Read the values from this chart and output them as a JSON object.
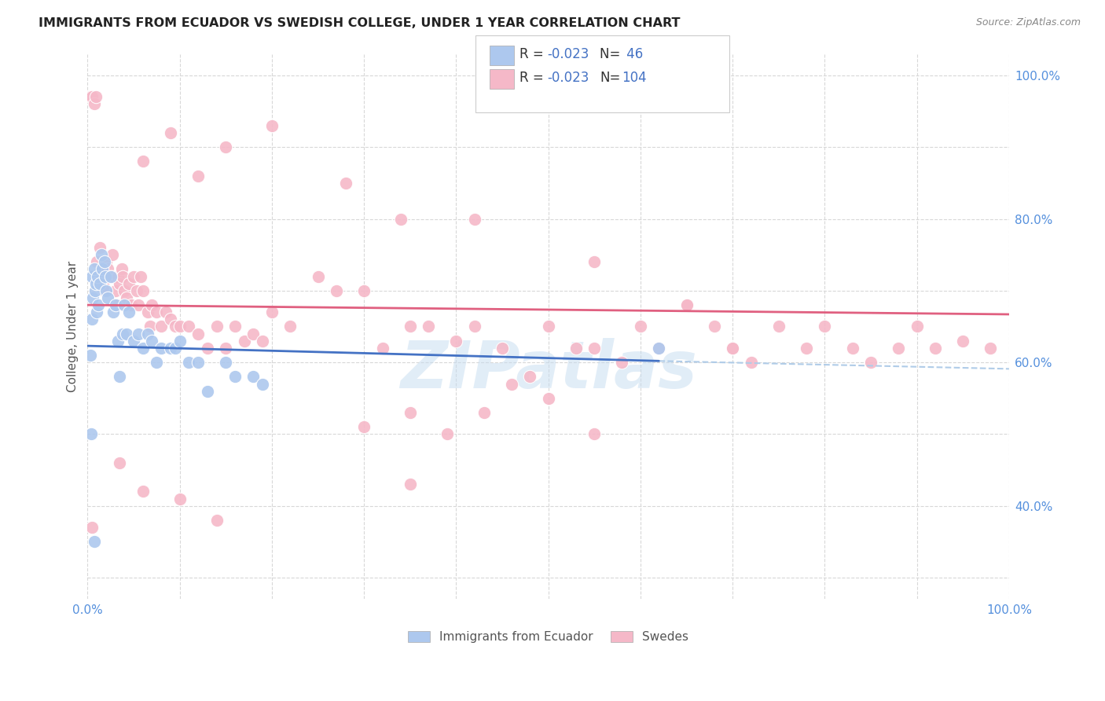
{
  "title": "IMMIGRANTS FROM ECUADOR VS SWEDISH COLLEGE, UNDER 1 YEAR CORRELATION CHART",
  "source": "Source: ZipAtlas.com",
  "ylabel": "College, Under 1 year",
  "xlim": [
    0.0,
    1.0
  ],
  "ylim": [
    0.27,
    1.03
  ],
  "legend_r_blue": "-0.023",
  "legend_n_blue": "46",
  "legend_r_pink": "-0.023",
  "legend_n_pink": "104",
  "blue_scatter_x": [
    0.003,
    0.005,
    0.005,
    0.006,
    0.007,
    0.008,
    0.009,
    0.01,
    0.011,
    0.012,
    0.013,
    0.015,
    0.016,
    0.018,
    0.019,
    0.02,
    0.022,
    0.025,
    0.028,
    0.03,
    0.033,
    0.035,
    0.038,
    0.04,
    0.042,
    0.045,
    0.05,
    0.055,
    0.06,
    0.065,
    0.07,
    0.075,
    0.08,
    0.09,
    0.095,
    0.1,
    0.11,
    0.12,
    0.13,
    0.15,
    0.16,
    0.18,
    0.19,
    0.62,
    0.004,
    0.007
  ],
  "blue_scatter_y": [
    0.61,
    0.66,
    0.72,
    0.69,
    0.73,
    0.7,
    0.71,
    0.67,
    0.72,
    0.68,
    0.71,
    0.75,
    0.73,
    0.74,
    0.72,
    0.7,
    0.69,
    0.72,
    0.67,
    0.68,
    0.63,
    0.58,
    0.64,
    0.68,
    0.64,
    0.67,
    0.63,
    0.64,
    0.62,
    0.64,
    0.63,
    0.6,
    0.62,
    0.62,
    0.62,
    0.63,
    0.6,
    0.6,
    0.56,
    0.6,
    0.58,
    0.58,
    0.57,
    0.62,
    0.5,
    0.35
  ],
  "pink_scatter_x": [
    0.003,
    0.005,
    0.007,
    0.009,
    0.01,
    0.012,
    0.013,
    0.015,
    0.017,
    0.018,
    0.02,
    0.022,
    0.025,
    0.027,
    0.028,
    0.03,
    0.032,
    0.033,
    0.035,
    0.037,
    0.038,
    0.04,
    0.042,
    0.045,
    0.047,
    0.05,
    0.053,
    0.055,
    0.058,
    0.06,
    0.065,
    0.068,
    0.07,
    0.075,
    0.08,
    0.085,
    0.09,
    0.095,
    0.1,
    0.11,
    0.12,
    0.13,
    0.14,
    0.15,
    0.16,
    0.17,
    0.18,
    0.19,
    0.2,
    0.22,
    0.25,
    0.27,
    0.3,
    0.32,
    0.35,
    0.37,
    0.4,
    0.42,
    0.45,
    0.48,
    0.5,
    0.53,
    0.55,
    0.58,
    0.6,
    0.62,
    0.65,
    0.68,
    0.7,
    0.72,
    0.75,
    0.78,
    0.8,
    0.83,
    0.85,
    0.88,
    0.9,
    0.92,
    0.95,
    0.98,
    0.3,
    0.35,
    0.39,
    0.43,
    0.46,
    0.5,
    0.55,
    0.06,
    0.09,
    0.12,
    0.15,
    0.2,
    0.28,
    0.34,
    0.42,
    0.55,
    0.65,
    0.7,
    0.35,
    0.005,
    0.035,
    0.06,
    0.1,
    0.14
  ],
  "pink_scatter_y": [
    0.97,
    0.97,
    0.96,
    0.97,
    0.74,
    0.72,
    0.76,
    0.73,
    0.71,
    0.7,
    0.74,
    0.73,
    0.72,
    0.75,
    0.72,
    0.7,
    0.68,
    0.72,
    0.71,
    0.73,
    0.72,
    0.7,
    0.69,
    0.71,
    0.68,
    0.72,
    0.7,
    0.68,
    0.72,
    0.7,
    0.67,
    0.65,
    0.68,
    0.67,
    0.65,
    0.67,
    0.66,
    0.65,
    0.65,
    0.65,
    0.64,
    0.62,
    0.65,
    0.62,
    0.65,
    0.63,
    0.64,
    0.63,
    0.67,
    0.65,
    0.72,
    0.7,
    0.7,
    0.62,
    0.65,
    0.65,
    0.63,
    0.65,
    0.62,
    0.58,
    0.65,
    0.62,
    0.62,
    0.6,
    0.65,
    0.62,
    0.68,
    0.65,
    0.62,
    0.6,
    0.65,
    0.62,
    0.65,
    0.62,
    0.6,
    0.62,
    0.65,
    0.62,
    0.63,
    0.62,
    0.51,
    0.53,
    0.5,
    0.53,
    0.57,
    0.55,
    0.5,
    0.88,
    0.92,
    0.86,
    0.9,
    0.93,
    0.85,
    0.8,
    0.8,
    0.74,
    0.68,
    0.62,
    0.43,
    0.37,
    0.46,
    0.42,
    0.41,
    0.38
  ],
  "blue_line_x": [
    0.0,
    0.62
  ],
  "blue_line_y": [
    0.623,
    0.602
  ],
  "dashed_line_x": [
    0.62,
    1.0
  ],
  "dashed_line_y": [
    0.602,
    0.591
  ],
  "pink_line_x": [
    0.0,
    1.0
  ],
  "pink_line_y": [
    0.68,
    0.667
  ],
  "watermark": "ZIPatlas",
  "blue_color": "#adc8ee",
  "pink_color": "#f5b8c8",
  "blue_line_color": "#4472c4",
  "pink_line_color": "#e06080",
  "dashed_line_color": "#b0cce8",
  "background_color": "#ffffff",
  "grid_color": "#d8d8d8",
  "tick_color": "#5590dd",
  "ylabel_color": "#555555",
  "title_color": "#222222",
  "source_color": "#888888"
}
